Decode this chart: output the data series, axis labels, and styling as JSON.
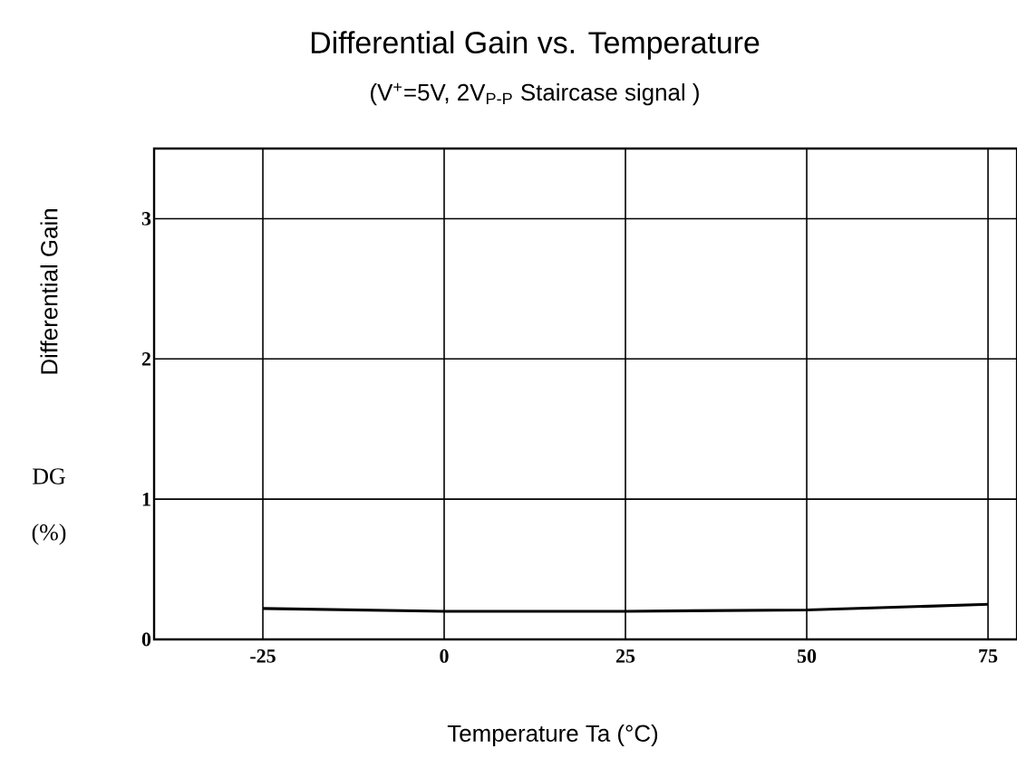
{
  "chart_data": {
    "type": "line",
    "title": "Differential Gain vs. Temperature",
    "subtitle": "(V$^{+}$=5V, 2V$_{P-P}$ Staircase signal )",
    "xlabel": "Temperature Ta (°C)",
    "ylabel": "Differential Gain",
    "annotations": [
      "DG",
      "(%)"
    ],
    "x": [
      -25,
      0,
      25,
      50,
      75
    ],
    "series": [
      {
        "color": "#000000",
        "values": [
          0.22,
          0.2,
          0.2,
          0.21,
          0.25
        ]
      }
    ],
    "xlim": [
      -40,
      79
    ],
    "ylim": [
      0,
      3.5
    ],
    "xticks": [
      -25,
      0,
      25,
      50,
      75
    ],
    "yticks": [
      0,
      1,
      2,
      3
    ],
    "grid": true,
    "marker": "none",
    "line_style": "solid"
  }
}
